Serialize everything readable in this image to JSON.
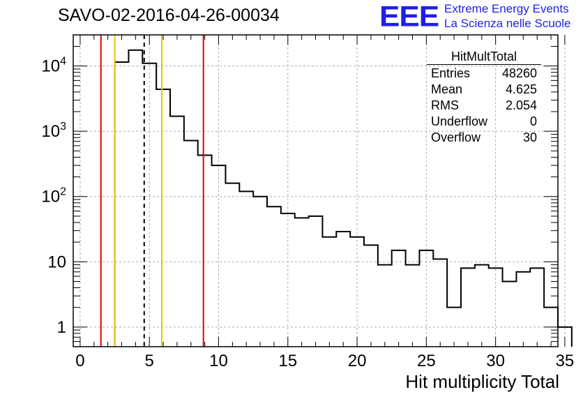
{
  "title": "SAVO-02-2016-04-26-00034",
  "logo": {
    "mark": "EEE",
    "line1": "Extreme Energy Events",
    "line2": "La Scienza nelle Scuole",
    "color": "#1f1fe8"
  },
  "stats_box": {
    "title": "HitMultTotal",
    "rows": [
      {
        "label": "Entries",
        "value": "48260"
      },
      {
        "label": "Mean",
        "value": "4.625"
      },
      {
        "label": "RMS",
        "value": "2.054"
      },
      {
        "label": "Underflow",
        "value": "0"
      },
      {
        "label": "Overflow",
        "value": "30"
      }
    ]
  },
  "chart_data": {
    "type": "histogram",
    "title": "SAVO-02-2016-04-26-00034",
    "xlabel": "Hit multiplicity Total",
    "ylabel": "",
    "xlim": [
      -0.5,
      34.5
    ],
    "ylim": [
      0.5,
      30000
    ],
    "yscale": "log",
    "grid": true,
    "bin_width": 1,
    "bin_start": 2.5,
    "counts": [
      11500,
      17500,
      11000,
      4400,
      1700,
      720,
      430,
      300,
      160,
      120,
      100,
      70,
      55,
      47,
      50,
      24,
      29,
      24,
      18,
      9,
      15,
      9,
      15,
      11,
      2,
      8,
      9,
      8,
      5,
      7,
      8,
      2,
      1
    ],
    "x_ticks": [
      0,
      5,
      10,
      15,
      20,
      25,
      30,
      35
    ],
    "x_tick_labels": [
      "0",
      "5",
      "10",
      "15",
      "20",
      "25",
      "30",
      "35"
    ],
    "y_ticks": [
      1,
      10,
      100,
      1000,
      10000
    ],
    "y_tick_labels": [
      "1",
      "10",
      "10^2",
      "10^3",
      "10^4"
    ],
    "vertical_lines": [
      {
        "x": 1.5,
        "color": "#e00000",
        "style": "solid"
      },
      {
        "x": 2.5,
        "color": "#f0c000",
        "style": "solid"
      },
      {
        "x": 4.625,
        "color": "#000000",
        "style": "dashed"
      },
      {
        "x": 5.9,
        "color": "#f0c000",
        "style": "solid"
      },
      {
        "x": 8.9,
        "color": "#e00000",
        "style": "solid"
      }
    ]
  }
}
